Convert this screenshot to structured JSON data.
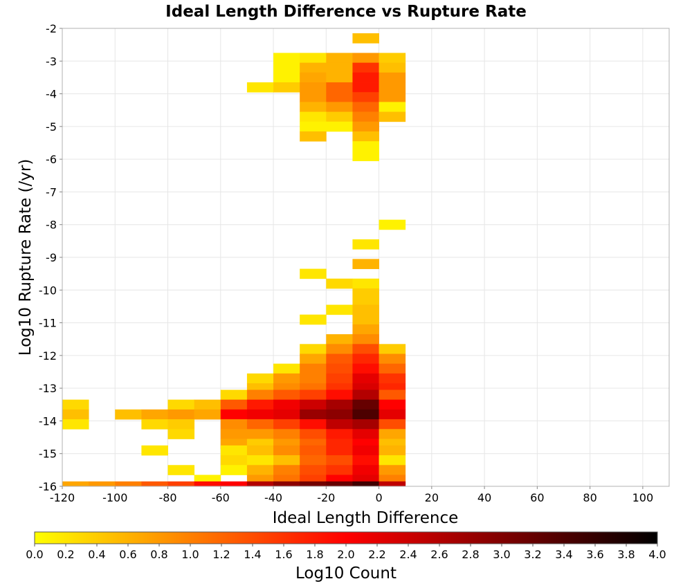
{
  "chart_data": {
    "type": "heatmap",
    "title": "Ideal Length Difference vs Rupture Rate",
    "xlabel": "Ideal Length Difference",
    "ylabel": "Log10 Rupture Rate (/yr)",
    "xlim": [
      -120,
      110
    ],
    "ylim": [
      -16,
      -2
    ],
    "x_ticks": [
      -120,
      -100,
      -80,
      -60,
      -40,
      -20,
      0,
      20,
      40,
      60,
      80,
      100
    ],
    "y_ticks": [
      -2,
      -3,
      -4,
      -5,
      -6,
      -7,
      -8,
      -9,
      -10,
      -11,
      -12,
      -13,
      -14,
      -15,
      -16
    ],
    "x_bin_width": 10,
    "y_bin_height": 0.3,
    "grid": true,
    "colorbar": {
      "label": "Log10 Count",
      "min": 0.0,
      "max": 4.0,
      "ticks": [
        "0.0",
        "0.2",
        "0.4",
        "0.6",
        "0.8",
        "1.0",
        "1.2",
        "1.4",
        "1.6",
        "1.8",
        "2.0",
        "2.2",
        "2.4",
        "2.6",
        "2.8",
        "3.0",
        "3.2",
        "3.4",
        "3.6",
        "3.8",
        "4.0"
      ],
      "colors": [
        "#ffff00",
        "#ff0000",
        "#000000"
      ]
    },
    "cells": [
      {
        "x": -5,
        "y": -2.3,
        "v": 0.5
      },
      {
        "x": -35,
        "y": -2.9,
        "v": 0.1
      },
      {
        "x": -25,
        "y": -2.9,
        "v": 0.2
      },
      {
        "x": -15,
        "y": -2.9,
        "v": 0.6
      },
      {
        "x": -5,
        "y": -2.9,
        "v": 0.8
      },
      {
        "x": 5,
        "y": -2.9,
        "v": 0.4
      },
      {
        "x": -35,
        "y": -3.2,
        "v": 0.1
      },
      {
        "x": -25,
        "y": -3.2,
        "v": 0.6
      },
      {
        "x": -15,
        "y": -3.2,
        "v": 0.6
      },
      {
        "x": -5,
        "y": -3.2,
        "v": 1.6
      },
      {
        "x": 5,
        "y": -3.2,
        "v": 0.5
      },
      {
        "x": -35,
        "y": -3.5,
        "v": 0.1
      },
      {
        "x": -25,
        "y": -3.5,
        "v": 0.7
      },
      {
        "x": -15,
        "y": -3.5,
        "v": 0.6
      },
      {
        "x": -5,
        "y": -3.5,
        "v": 1.8
      },
      {
        "x": 5,
        "y": -3.5,
        "v": 0.8
      },
      {
        "x": -45,
        "y": -3.8,
        "v": 0.2
      },
      {
        "x": -35,
        "y": -3.8,
        "v": 0.4
      },
      {
        "x": -25,
        "y": -3.8,
        "v": 0.8
      },
      {
        "x": -15,
        "y": -3.8,
        "v": 1.2
      },
      {
        "x": -5,
        "y": -3.8,
        "v": 1.8
      },
      {
        "x": 5,
        "y": -3.8,
        "v": 0.8
      },
      {
        "x": -25,
        "y": -4.1,
        "v": 0.8
      },
      {
        "x": -15,
        "y": -4.1,
        "v": 1.2
      },
      {
        "x": -5,
        "y": -4.1,
        "v": 1.5
      },
      {
        "x": 5,
        "y": -4.1,
        "v": 0.8
      },
      {
        "x": -25,
        "y": -4.4,
        "v": 0.6
      },
      {
        "x": -15,
        "y": -4.4,
        "v": 0.8
      },
      {
        "x": -5,
        "y": -4.4,
        "v": 1.2
      },
      {
        "x": 5,
        "y": -4.4,
        "v": 0.1
      },
      {
        "x": -25,
        "y": -4.7,
        "v": 0.2
      },
      {
        "x": -15,
        "y": -4.7,
        "v": 0.4
      },
      {
        "x": -5,
        "y": -4.7,
        "v": 1.0
      },
      {
        "x": 5,
        "y": -4.7,
        "v": 0.5
      },
      {
        "x": -25,
        "y": -5.0,
        "v": 0.1
      },
      {
        "x": -15,
        "y": -5.0,
        "v": 0.1
      },
      {
        "x": -5,
        "y": -5.0,
        "v": 0.8
      },
      {
        "x": -25,
        "y": -5.3,
        "v": 0.5
      },
      {
        "x": -5,
        "y": -5.3,
        "v": 0.5
      },
      {
        "x": -5,
        "y": -5.6,
        "v": 0.1
      },
      {
        "x": -5,
        "y": -5.9,
        "v": 0.1
      },
      {
        "x": 5,
        "y": -8.0,
        "v": 0.1
      },
      {
        "x": -5,
        "y": -8.6,
        "v": 0.2
      },
      {
        "x": -5,
        "y": -9.2,
        "v": 0.6
      },
      {
        "x": -25,
        "y": -9.5,
        "v": 0.2
      },
      {
        "x": -15,
        "y": -9.8,
        "v": 0.3
      },
      {
        "x": -5,
        "y": -9.8,
        "v": 0.2
      },
      {
        "x": -5,
        "y": -10.1,
        "v": 0.4
      },
      {
        "x": -5,
        "y": -10.4,
        "v": 0.4
      },
      {
        "x": -15,
        "y": -10.6,
        "v": 0.2
      },
      {
        "x": -5,
        "y": -10.6,
        "v": 0.5
      },
      {
        "x": -25,
        "y": -10.9,
        "v": 0.2
      },
      {
        "x": -5,
        "y": -10.9,
        "v": 0.5
      },
      {
        "x": -5,
        "y": -11.2,
        "v": 0.7
      },
      {
        "x": -15,
        "y": -11.5,
        "v": 0.6
      },
      {
        "x": -5,
        "y": -11.5,
        "v": 0.9
      },
      {
        "x": -25,
        "y": -11.8,
        "v": 0.3
      },
      {
        "x": -15,
        "y": -11.8,
        "v": 0.9
      },
      {
        "x": -5,
        "y": -11.8,
        "v": 1.4
      },
      {
        "x": 5,
        "y": -11.8,
        "v": 0.4
      },
      {
        "x": -25,
        "y": -12.1,
        "v": 0.7
      },
      {
        "x": -15,
        "y": -12.1,
        "v": 1.3
      },
      {
        "x": -5,
        "y": -12.1,
        "v": 1.7
      },
      {
        "x": 5,
        "y": -12.1,
        "v": 0.9
      },
      {
        "x": -35,
        "y": -12.4,
        "v": 0.2
      },
      {
        "x": -25,
        "y": -12.4,
        "v": 1.0
      },
      {
        "x": -15,
        "y": -12.4,
        "v": 1.4
      },
      {
        "x": -5,
        "y": -12.4,
        "v": 1.9
      },
      {
        "x": 5,
        "y": -12.4,
        "v": 1.2
      },
      {
        "x": -45,
        "y": -12.7,
        "v": 0.3
      },
      {
        "x": -35,
        "y": -12.7,
        "v": 0.8
      },
      {
        "x": -25,
        "y": -12.7,
        "v": 1.0
      },
      {
        "x": -15,
        "y": -12.7,
        "v": 1.5
      },
      {
        "x": -5,
        "y": -12.7,
        "v": 2.2
      },
      {
        "x": 5,
        "y": -12.7,
        "v": 1.6
      },
      {
        "x": -45,
        "y": -13.0,
        "v": 0.5
      },
      {
        "x": -35,
        "y": -13.0,
        "v": 0.9
      },
      {
        "x": -25,
        "y": -13.0,
        "v": 1.1
      },
      {
        "x": -15,
        "y": -13.0,
        "v": 1.6
      },
      {
        "x": -5,
        "y": -13.0,
        "v": 2.3
      },
      {
        "x": 5,
        "y": -13.0,
        "v": 1.7
      },
      {
        "x": -55,
        "y": -13.2,
        "v": 0.3
      },
      {
        "x": -45,
        "y": -13.2,
        "v": 1.0
      },
      {
        "x": -35,
        "y": -13.2,
        "v": 1.3
      },
      {
        "x": -25,
        "y": -13.2,
        "v": 1.5
      },
      {
        "x": -15,
        "y": -13.2,
        "v": 1.9
      },
      {
        "x": -5,
        "y": -13.2,
        "v": 2.6
      },
      {
        "x": 5,
        "y": -13.2,
        "v": 1.3
      },
      {
        "x": -115,
        "y": -13.5,
        "v": 0.3
      },
      {
        "x": -75,
        "y": -13.5,
        "v": 0.3
      },
      {
        "x": -65,
        "y": -13.5,
        "v": 0.5
      },
      {
        "x": -55,
        "y": -13.5,
        "v": 1.3
      },
      {
        "x": -45,
        "y": -13.5,
        "v": 1.8
      },
      {
        "x": -35,
        "y": -13.5,
        "v": 2.1
      },
      {
        "x": -25,
        "y": -13.5,
        "v": 2.4
      },
      {
        "x": -15,
        "y": -13.5,
        "v": 2.7
      },
      {
        "x": -5,
        "y": -13.5,
        "v": 3.2
      },
      {
        "x": 5,
        "y": -13.5,
        "v": 2.0
      },
      {
        "x": -115,
        "y": -13.8,
        "v": 0.5
      },
      {
        "x": -95,
        "y": -13.8,
        "v": 0.5
      },
      {
        "x": -85,
        "y": -13.8,
        "v": 0.7
      },
      {
        "x": -75,
        "y": -13.8,
        "v": 0.8
      },
      {
        "x": -65,
        "y": -13.8,
        "v": 0.7
      },
      {
        "x": -55,
        "y": -13.8,
        "v": 2.0
      },
      {
        "x": -45,
        "y": -13.8,
        "v": 2.1
      },
      {
        "x": -35,
        "y": -13.8,
        "v": 2.2
      },
      {
        "x": -25,
        "y": -13.8,
        "v": 2.8
      },
      {
        "x": -15,
        "y": -13.8,
        "v": 2.9
      },
      {
        "x": -5,
        "y": -13.8,
        "v": 3.4
      },
      {
        "x": 5,
        "y": -13.8,
        "v": 2.2
      },
      {
        "x": -115,
        "y": -14.1,
        "v": 0.2
      },
      {
        "x": -85,
        "y": -14.1,
        "v": 0.3
      },
      {
        "x": -75,
        "y": -14.1,
        "v": 0.4
      },
      {
        "x": -55,
        "y": -14.1,
        "v": 0.9
      },
      {
        "x": -45,
        "y": -14.1,
        "v": 1.2
      },
      {
        "x": -35,
        "y": -14.1,
        "v": 1.5
      },
      {
        "x": -25,
        "y": -14.1,
        "v": 1.9
      },
      {
        "x": -15,
        "y": -14.1,
        "v": 2.5
      },
      {
        "x": -5,
        "y": -14.1,
        "v": 2.7
      },
      {
        "x": 5,
        "y": -14.1,
        "v": 1.4
      },
      {
        "x": -75,
        "y": -14.4,
        "v": 0.3
      },
      {
        "x": -55,
        "y": -14.4,
        "v": 0.8
      },
      {
        "x": -45,
        "y": -14.4,
        "v": 0.8
      },
      {
        "x": -35,
        "y": -14.4,
        "v": 1.0
      },
      {
        "x": -25,
        "y": -14.4,
        "v": 1.4
      },
      {
        "x": -15,
        "y": -14.4,
        "v": 1.8
      },
      {
        "x": -5,
        "y": -14.4,
        "v": 2.2
      },
      {
        "x": 5,
        "y": -14.4,
        "v": 0.7
      },
      {
        "x": -55,
        "y": -14.7,
        "v": 0.7
      },
      {
        "x": -45,
        "y": -14.7,
        "v": 0.4
      },
      {
        "x": -35,
        "y": -14.7,
        "v": 0.8
      },
      {
        "x": -25,
        "y": -14.7,
        "v": 1.2
      },
      {
        "x": -15,
        "y": -14.7,
        "v": 1.7
      },
      {
        "x": -5,
        "y": -14.7,
        "v": 2.0
      },
      {
        "x": 5,
        "y": -14.7,
        "v": 0.5
      },
      {
        "x": -85,
        "y": -14.9,
        "v": 0.2
      },
      {
        "x": -55,
        "y": -14.9,
        "v": 0.2
      },
      {
        "x": -45,
        "y": -14.9,
        "v": 0.5
      },
      {
        "x": -35,
        "y": -14.9,
        "v": 0.9
      },
      {
        "x": -25,
        "y": -14.9,
        "v": 1.3
      },
      {
        "x": -15,
        "y": -14.9,
        "v": 1.7
      },
      {
        "x": -5,
        "y": -14.9,
        "v": 2.1
      },
      {
        "x": 5,
        "y": -14.9,
        "v": 0.6
      },
      {
        "x": -55,
        "y": -15.2,
        "v": 0.3
      },
      {
        "x": -45,
        "y": -15.2,
        "v": 0.2
      },
      {
        "x": -35,
        "y": -15.2,
        "v": 0.5
      },
      {
        "x": -25,
        "y": -15.2,
        "v": 1.2
      },
      {
        "x": -15,
        "y": -15.2,
        "v": 1.4
      },
      {
        "x": -5,
        "y": -15.2,
        "v": 1.9
      },
      {
        "x": 5,
        "y": -15.2,
        "v": 0.2
      },
      {
        "x": -75,
        "y": -15.5,
        "v": 0.2
      },
      {
        "x": -55,
        "y": -15.5,
        "v": 0.1
      },
      {
        "x": -45,
        "y": -15.5,
        "v": 0.6
      },
      {
        "x": -35,
        "y": -15.5,
        "v": 1.0
      },
      {
        "x": -25,
        "y": -15.5,
        "v": 1.4
      },
      {
        "x": -15,
        "y": -15.5,
        "v": 1.6
      },
      {
        "x": -5,
        "y": -15.5,
        "v": 2.1
      },
      {
        "x": 5,
        "y": -15.5,
        "v": 0.8
      },
      {
        "x": -65,
        "y": -15.8,
        "v": 0.1
      },
      {
        "x": -45,
        "y": -15.8,
        "v": 0.8
      },
      {
        "x": -35,
        "y": -15.8,
        "v": 1.1
      },
      {
        "x": -25,
        "y": -15.8,
        "v": 1.5
      },
      {
        "x": -15,
        "y": -15.8,
        "v": 2.0
      },
      {
        "x": -5,
        "y": -15.8,
        "v": 2.2
      },
      {
        "x": 5,
        "y": -15.8,
        "v": 1.0
      },
      {
        "x": -115,
        "y": -16.0,
        "v": 0.7
      },
      {
        "x": -105,
        "y": -16.0,
        "v": 0.8
      },
      {
        "x": -95,
        "y": -16.0,
        "v": 1.0
      },
      {
        "x": -85,
        "y": -16.0,
        "v": 1.3
      },
      {
        "x": -75,
        "y": -16.0,
        "v": 1.5
      },
      {
        "x": -65,
        "y": -16.0,
        "v": 1.9
      },
      {
        "x": -55,
        "y": -16.0,
        "v": 2.0
      },
      {
        "x": -45,
        "y": -16.0,
        "v": 2.6
      },
      {
        "x": -35,
        "y": -16.0,
        "v": 2.9
      },
      {
        "x": -25,
        "y": -16.0,
        "v": 3.1
      },
      {
        "x": -15,
        "y": -16.0,
        "v": 3.2
      },
      {
        "x": -5,
        "y": -16.0,
        "v": 3.5
      },
      {
        "x": 5,
        "y": -16.0,
        "v": 2.5
      }
    ]
  }
}
